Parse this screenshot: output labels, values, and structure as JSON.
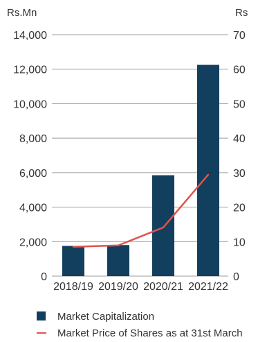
{
  "chart_data": {
    "type": "bar",
    "left_unit": "Rs.Mn",
    "right_unit": "Rs",
    "categories": [
      "2018/19",
      "2019/20",
      "2020/21",
      "2021/22"
    ],
    "left_axis": {
      "ylim": [
        0,
        14000
      ],
      "ticks": [
        0,
        2000,
        4000,
        6000,
        8000,
        10000,
        12000,
        14000
      ],
      "tick_labels": [
        "0",
        "2,000",
        "4,000",
        "6,000",
        "8,000",
        "10,000",
        "12,000",
        "14,000"
      ]
    },
    "right_axis": {
      "ylim": [
        0,
        70
      ],
      "ticks": [
        0,
        10,
        20,
        30,
        40,
        50,
        60,
        70
      ],
      "tick_labels": [
        "0",
        "10",
        "20",
        "30",
        "40",
        "50",
        "60",
        "70"
      ]
    },
    "series": [
      {
        "name": "Market Capitalization",
        "type": "bar",
        "axis": "left",
        "color": "#123f5e",
        "values": [
          1750,
          1800,
          5850,
          12250
        ]
      },
      {
        "name": "Market Price of Shares as at 31st March",
        "type": "line",
        "axis": "right",
        "color": "#e0524d",
        "values": [
          8.5,
          8.9,
          14.1,
          29.4
        ]
      }
    ],
    "grid": true,
    "legend": "bottom"
  }
}
